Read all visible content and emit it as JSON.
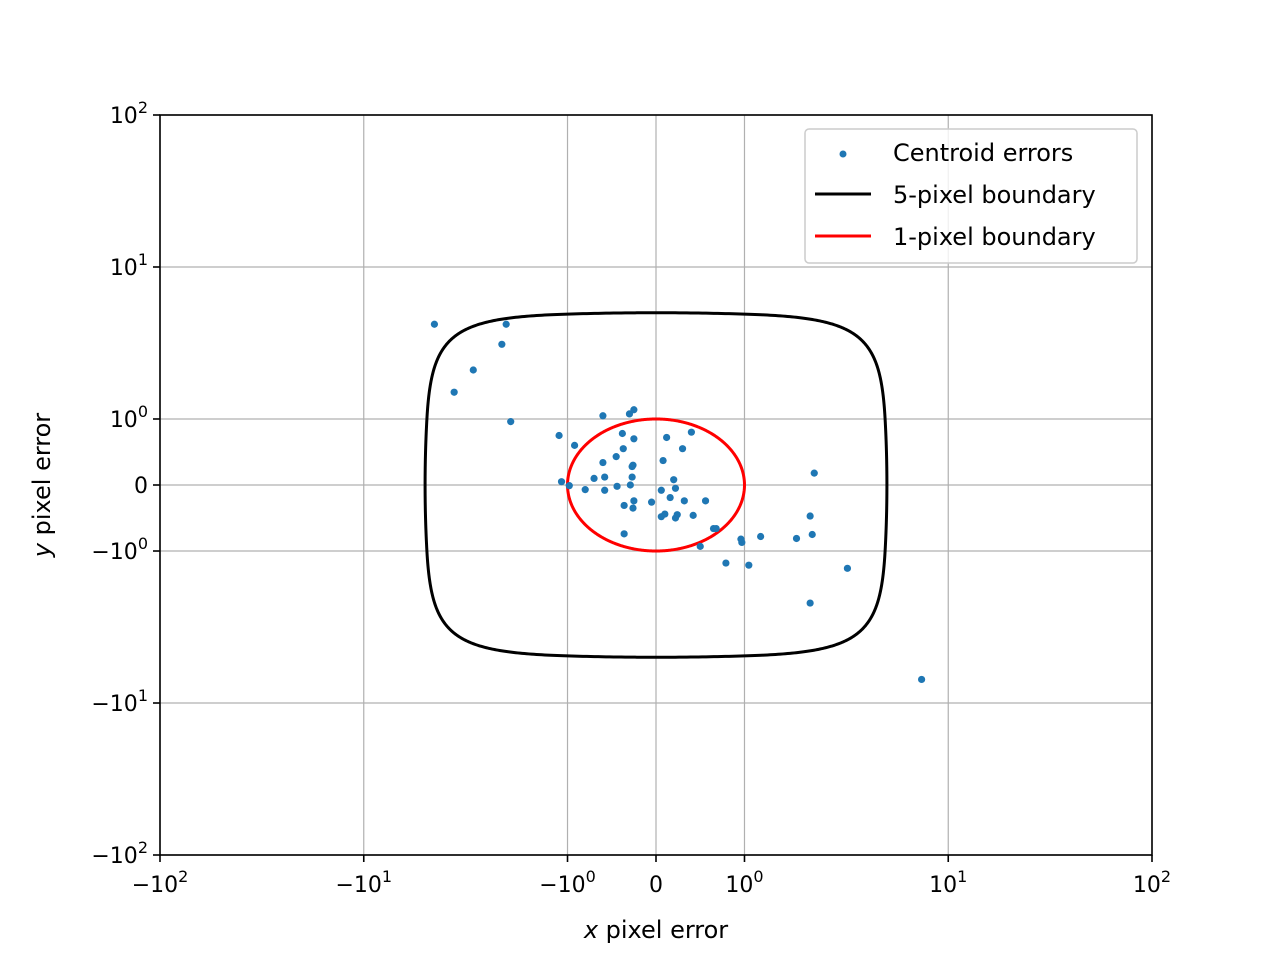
{
  "chart_data": {
    "type": "scatter",
    "title": "",
    "xlabel": "x pixel error",
    "ylabel": "y pixel error",
    "xscale": "symlog",
    "yscale": "symlog",
    "xlim": [
      -100,
      100
    ],
    "ylim": [
      -100,
      100
    ],
    "grid": true,
    "legend_position": "upper-right",
    "x_ticks": [
      {
        "value": -100,
        "base": "−10",
        "exp": "2"
      },
      {
        "value": -10,
        "base": "−10",
        "exp": "1"
      },
      {
        "value": -1,
        "base": "−10",
        "exp": "0"
      },
      {
        "value": 0,
        "base": "0",
        "exp": ""
      },
      {
        "value": 1,
        "base": "10",
        "exp": "0"
      },
      {
        "value": 10,
        "base": "10",
        "exp": "1"
      },
      {
        "value": 100,
        "base": "10",
        "exp": "2"
      }
    ],
    "y_ticks": [
      {
        "value": 100,
        "base": "10",
        "exp": "2"
      },
      {
        "value": 10,
        "base": "10",
        "exp": "1"
      },
      {
        "value": 1,
        "base": "10",
        "exp": "0"
      },
      {
        "value": 0,
        "base": "0",
        "exp": ""
      },
      {
        "value": -1,
        "base": "−10",
        "exp": "0"
      },
      {
        "value": -10,
        "base": "−10",
        "exp": "1"
      },
      {
        "value": -100,
        "base": "−10",
        "exp": "2"
      }
    ],
    "series": [
      {
        "name": "Centroid errors",
        "kind": "scatter",
        "color": "#1f77b4",
        "points": [
          [
            -4.5,
            4.2
          ],
          [
            -2.0,
            4.2
          ],
          [
            -2.9,
            2.1
          ],
          [
            -3.6,
            1.5
          ],
          [
            -2.1,
            3.1
          ],
          [
            -1.9,
            0.96
          ],
          [
            -1.1,
            0.75
          ],
          [
            -0.92,
            0.6
          ],
          [
            -0.6,
            1.05
          ],
          [
            -0.3,
            1.08
          ],
          [
            -0.25,
            1.15
          ],
          [
            -0.38,
            0.78
          ],
          [
            -0.25,
            0.7
          ],
          [
            -0.37,
            0.55
          ],
          [
            -0.45,
            0.43
          ],
          [
            -0.6,
            0.34
          ],
          [
            -0.26,
            0.3
          ],
          [
            -0.27,
            0.28
          ],
          [
            -0.27,
            0.12
          ],
          [
            -0.58,
            0.12
          ],
          [
            -0.7,
            0.1
          ],
          [
            -1.07,
            0.05
          ],
          [
            -0.98,
            -0.01
          ],
          [
            -0.44,
            -0.02
          ],
          [
            -0.29,
            0.0
          ],
          [
            -0.8,
            -0.07
          ],
          [
            -0.58,
            -0.08
          ],
          [
            -0.25,
            -0.24
          ],
          [
            -0.36,
            -0.31
          ],
          [
            -0.26,
            -0.35
          ],
          [
            -0.36,
            -0.74
          ],
          [
            -0.05,
            -0.26
          ],
          [
            0.06,
            -0.08
          ],
          [
            0.08,
            0.37
          ],
          [
            0.12,
            0.72
          ],
          [
            0.3,
            0.55
          ],
          [
            0.2,
            0.08
          ],
          [
            0.22,
            -0.05
          ],
          [
            0.16,
            -0.19
          ],
          [
            0.32,
            -0.24
          ],
          [
            0.06,
            -0.48
          ],
          [
            0.1,
            -0.44
          ],
          [
            0.24,
            -0.45
          ],
          [
            0.42,
            -0.46
          ],
          [
            0.22,
            -0.5
          ],
          [
            0.56,
            -0.24
          ],
          [
            0.4,
            0.8
          ],
          [
            0.65,
            -0.66
          ],
          [
            0.68,
            -0.66
          ],
          [
            0.5,
            -0.93
          ],
          [
            0.97,
            -0.87
          ],
          [
            0.96,
            -0.82
          ],
          [
            1.2,
            -0.78
          ],
          [
            0.79,
            -1.2
          ],
          [
            1.05,
            -1.24
          ],
          [
            1.8,
            -0.81
          ],
          [
            2.1,
            -0.47
          ],
          [
            2.15,
            -0.75
          ],
          [
            2.2,
            0.18
          ],
          [
            3.2,
            -1.3
          ],
          [
            2.1,
            -2.2
          ],
          [
            7.4,
            -7.0
          ]
        ]
      },
      {
        "name": "5-pixel boundary",
        "kind": "line",
        "color": "#000000",
        "radius": 5
      },
      {
        "name": "1-pixel boundary",
        "kind": "line",
        "color": "#ff0000",
        "radius": 1
      }
    ]
  }
}
